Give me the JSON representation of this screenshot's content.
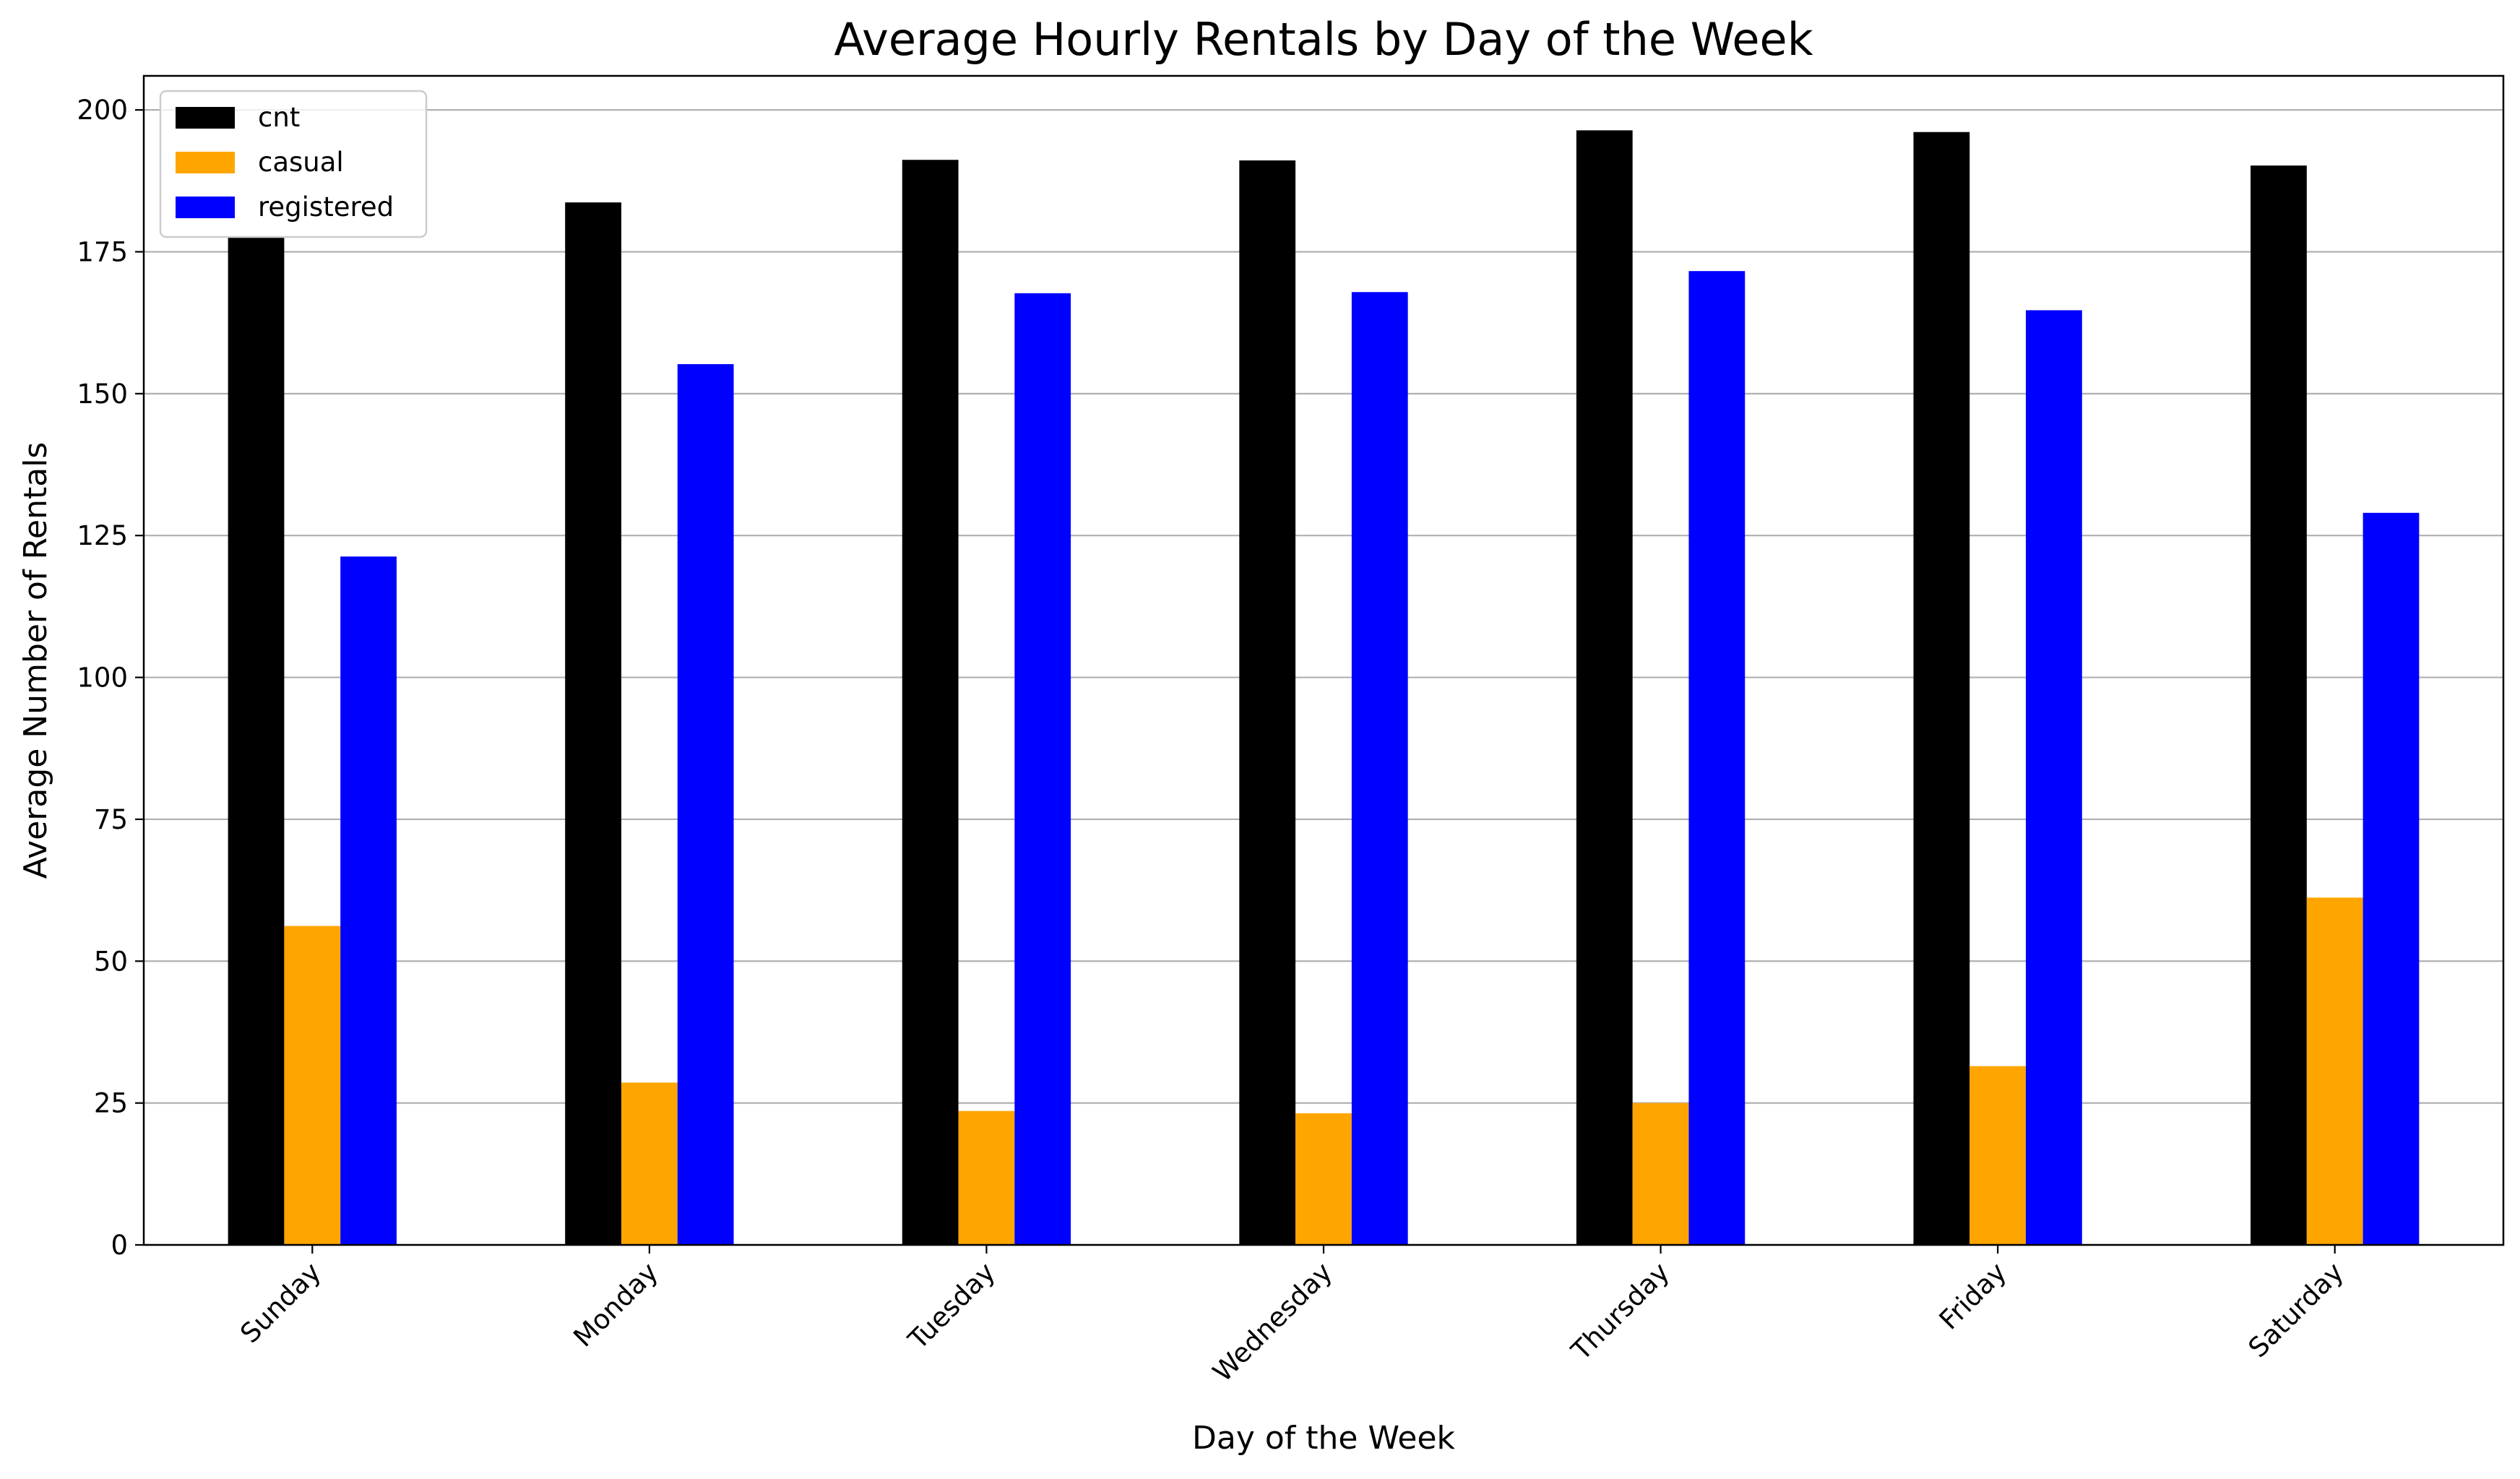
{
  "chart_data": {
    "type": "bar",
    "title": "Average Hourly Rentals by Day of the Week",
    "xlabel": "Day of the Week",
    "ylabel": "Average Number of Rentals",
    "categories": [
      "Sunday",
      "Monday",
      "Tuesday",
      "Wednesday",
      "Thursday",
      "Friday",
      "Saturday"
    ],
    "series": [
      {
        "name": "cnt",
        "color": "#000000",
        "values": [
          177.5,
          183.7,
          191.2,
          191.1,
          196.4,
          196.1,
          190.2
        ]
      },
      {
        "name": "casual",
        "color": "#FFA500",
        "values": [
          56.2,
          28.6,
          23.6,
          23.2,
          25.0,
          31.5,
          61.2
        ]
      },
      {
        "name": "registered",
        "color": "#0000FF",
        "values": [
          121.3,
          155.2,
          167.7,
          167.9,
          171.6,
          164.7,
          129.0
        ]
      }
    ],
    "ylim": [
      0,
      206
    ],
    "yticks": [
      0,
      25,
      50,
      75,
      100,
      125,
      150,
      175,
      200
    ],
    "grid": "y",
    "legend_position": "top-left"
  }
}
